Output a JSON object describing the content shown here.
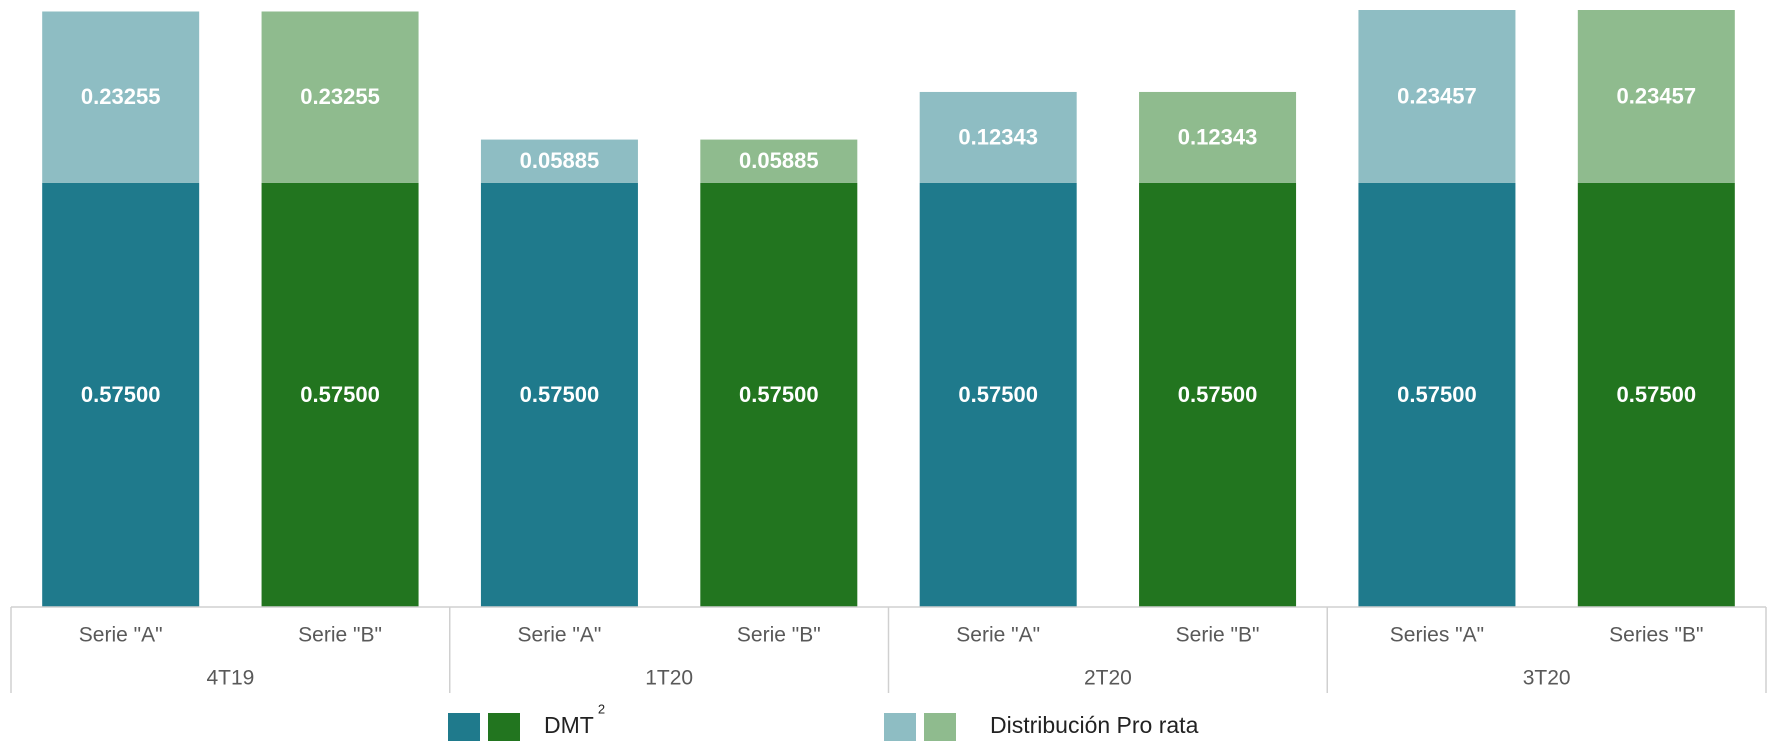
{
  "chart_data": {
    "type": "stacked_bar",
    "categories": [
      "Serie \"A\"",
      "Serie \"B\"",
      "Serie \"A\"",
      "Serie \"B\"",
      "Serie \"A\"",
      "Serie \"B\"",
      "Series \"A\"",
      "Series \"B\""
    ],
    "groups": [
      "4T19",
      "1T20",
      "2T20",
      "3T20"
    ],
    "series": [
      {
        "name": "DMT",
        "footnote": "2",
        "colors": [
          "#1f7a8c",
          "#22751f"
        ],
        "values": [
          0.575,
          0.575,
          0.575,
          0.575,
          0.575,
          0.575,
          0.575,
          0.575
        ],
        "value_labels": [
          "0.57500",
          "0.57500",
          "0.57500",
          "0.57500",
          "0.57500",
          "0.57500",
          "0.57500",
          "0.57500"
        ]
      },
      {
        "name": "Distribución Pro rata",
        "colors": [
          "#8ebdc3",
          "#8fbb8e"
        ],
        "values": [
          0.23255,
          0.23255,
          0.05885,
          0.05885,
          0.12343,
          0.12343,
          0.23457,
          0.23457
        ]
      }
    ]
  }
}
